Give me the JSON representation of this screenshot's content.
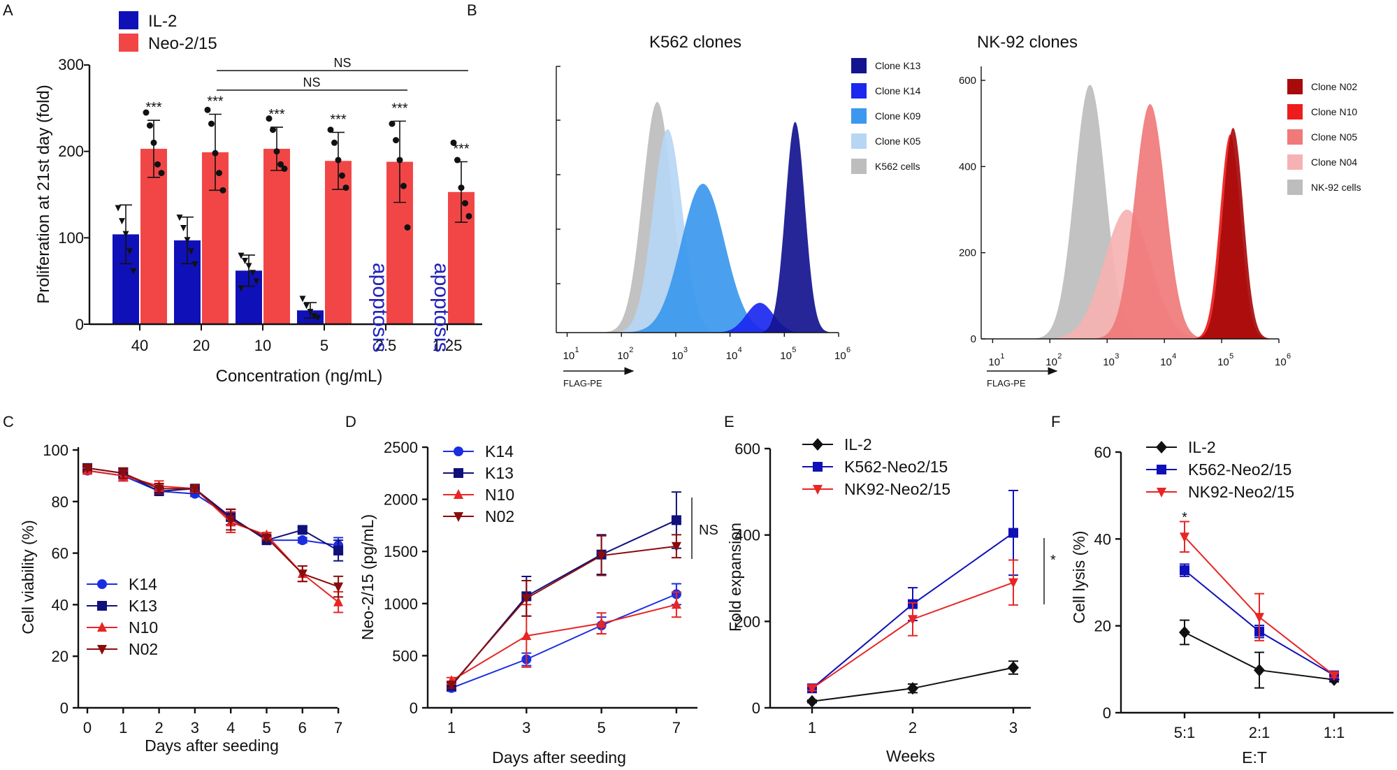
{
  "colors": {
    "il2": "#1010b8",
    "neo": "#f24646",
    "k14": "#1a2ee0",
    "k13": "#10107a",
    "n10": "#e82525",
    "n02": "#8a0c0c",
    "black": "#111111",
    "k13_fill": "#141490",
    "k14_fill": "#1a28f0",
    "k09_fill": "#3b98ee",
    "k05_fill": "#b6d6f4",
    "k562_fill": "#bdbdbd",
    "n02_fill": "#a80b0b",
    "n10_fill": "#ee1c1c",
    "n05_fill": "#f07a7a",
    "n04_fill": "#f6b2b2",
    "nk92_fill": "#bdbdbd"
  },
  "chart_data": [
    {
      "panel": "A",
      "type": "bar",
      "categories": [
        "40",
        "20",
        "10",
        "5",
        "2.5",
        "1.25"
      ],
      "series": [
        {
          "name": "IL-2",
          "values": [
            104,
            97,
            62,
            16,
            null,
            null
          ],
          "errors": [
            34,
            27,
            18,
            9,
            null,
            null
          ],
          "points": [
            [
              135,
              120,
              105,
              85,
              62
            ],
            [
              124,
              112,
              98,
              85,
              70
            ],
            [
              80,
              74,
              68,
              60,
              50,
              42
            ],
            [
              30,
              22,
              15,
              10,
              8
            ]
          ]
        },
        {
          "name": "Neo-2/15",
          "values": [
            203,
            199,
            203,
            189,
            188,
            153
          ],
          "errors": [
            33,
            44,
            25,
            33,
            47,
            35
          ],
          "points": [
            [
              245,
              230,
              210,
              185,
              175
            ],
            [
              248,
              232,
              198,
              175,
              155
            ],
            [
              238,
              225,
              200,
              185,
              180
            ],
            [
              225,
              210,
              190,
              172,
              158
            ],
            [
              232,
              213,
              190,
              160,
              112
            ],
            [
              210,
              190,
              158,
              140,
              125
            ]
          ]
        }
      ],
      "significance": [
        "***",
        "***",
        "***",
        "***",
        "***",
        "***"
      ],
      "annotations": [
        "apoptosis",
        "apoptosis"
      ],
      "brackets": [
        "NS",
        "NS"
      ],
      "xlabel": "Concentration (ng/mL)",
      "ylabel": "Proliferation at 21st day (fold)",
      "yticks": [
        "0",
        "100",
        "200",
        "300"
      ],
      "ylim": [
        0,
        300
      ]
    },
    {
      "panel": "B1",
      "type": "area",
      "title": "K562 clones",
      "xlabel": "FLAG-PE",
      "x_scale": "log10",
      "xticks": [
        "1",
        "2",
        "3",
        "4",
        "5",
        "6"
      ],
      "legend": [
        "Clone K13",
        "Clone K14",
        "Clone K09",
        "Clone K05",
        "K562 cells"
      ],
      "peaks": [
        {
          "name": "K562 cells",
          "center_log": 2.66,
          "height": 0.93
        },
        {
          "name": "Clone K05",
          "center_log": 2.85,
          "height": 0.82
        },
        {
          "name": "Clone K09",
          "center_log": 3.5,
          "height": 0.6
        },
        {
          "name": "Clone K14",
          "center_log": 4.55,
          "height": 0.12
        },
        {
          "name": "Clone K13",
          "center_log": 5.2,
          "height": 0.85
        }
      ]
    },
    {
      "panel": "B2",
      "type": "area",
      "title": "NK-92 clones",
      "xlabel": "FLAG-PE",
      "x_scale": "log10",
      "xticks": [
        "1",
        "2",
        "3",
        "4",
        "5",
        "6"
      ],
      "yticks": [
        "0",
        "200",
        "400",
        "600"
      ],
      "legend": [
        "Clone N02",
        "Clone N10",
        "Clone N05",
        "Clone N04",
        "NK-92 cells"
      ],
      "peaks": [
        {
          "name": "NK-92 cells",
          "center_log": 2.7,
          "height": 590
        },
        {
          "name": "Clone N04",
          "center_log": 3.35,
          "height": 300
        },
        {
          "name": "Clone N05",
          "center_log": 3.75,
          "height": 545
        },
        {
          "name": "Clone N10",
          "center_log": 5.15,
          "height": 475
        },
        {
          "name": "Clone N02",
          "center_log": 5.2,
          "height": 490
        }
      ]
    },
    {
      "panel": "C",
      "type": "line",
      "x": [
        0,
        1,
        2,
        3,
        4,
        5,
        6,
        7
      ],
      "series": [
        {
          "name": "K14",
          "values": [
            92,
            90,
            84,
            83,
            74,
            65,
            65,
            63
          ],
          "errors": [
            1,
            2,
            1,
            1,
            3,
            1,
            1,
            3
          ]
        },
        {
          "name": "K13",
          "values": [
            93,
            91,
            84,
            85,
            74,
            65,
            69,
            61
          ],
          "errors": [
            1,
            2,
            1,
            1,
            3,
            1,
            1,
            4
          ]
        },
        {
          "name": "N10",
          "values": [
            92,
            90,
            86,
            85,
            72,
            67,
            52,
            41
          ],
          "errors": [
            1,
            2,
            2,
            1,
            4,
            1,
            3,
            4
          ]
        },
        {
          "name": "N02",
          "values": [
            93,
            91,
            85,
            85,
            73,
            66,
            52,
            47
          ],
          "errors": [
            1,
            2,
            2,
            1,
            4,
            1,
            3,
            4
          ]
        }
      ],
      "xlabel": "Days after seeding",
      "ylabel": "Cell viability (%)",
      "xticks": [
        "0",
        "1",
        "2",
        "3",
        "4",
        "5",
        "6",
        "7"
      ],
      "yticks": [
        "0",
        "20",
        "40",
        "60",
        "80",
        "100"
      ],
      "ylim": [
        0,
        100
      ]
    },
    {
      "panel": "D",
      "type": "line",
      "x": [
        1,
        3,
        5,
        7
      ],
      "series": [
        {
          "name": "K14",
          "values": [
            190,
            465,
            790,
            1090
          ],
          "errors": [
            30,
            60,
            80,
            100
          ]
        },
        {
          "name": "K13",
          "values": [
            210,
            1070,
            1470,
            1800
          ],
          "errors": [
            30,
            190,
            190,
            270
          ]
        },
        {
          "name": "N10",
          "values": [
            260,
            690,
            810,
            990
          ],
          "errors": [
            30,
            300,
            100,
            120
          ]
        },
        {
          "name": "N02",
          "values": [
            220,
            1050,
            1460,
            1550
          ],
          "errors": [
            30,
            170,
            190,
            110
          ]
        }
      ],
      "brackets": [
        "NS"
      ],
      "xlabel": "Days after seeding",
      "ylabel": "Neo-2/15 (pg/mL)",
      "xticks": [
        "1",
        "3",
        "5",
        "7"
      ],
      "yticks": [
        "0",
        "500",
        "1000",
        "1500",
        "2000",
        "2500"
      ],
      "ylim": [
        0,
        2500
      ]
    },
    {
      "panel": "E",
      "type": "line",
      "x": [
        1,
        2,
        3
      ],
      "series": [
        {
          "name": "IL-2",
          "values": [
            15,
            45,
            93
          ],
          "errors": [
            3,
            10,
            15
          ]
        },
        {
          "name": "K562-Neo2/15",
          "values": [
            45,
            240,
            405
          ],
          "errors": [
            5,
            38,
            98
          ]
        },
        {
          "name": "NK92-Neo2/15",
          "values": [
            45,
            205,
            290
          ],
          "errors": [
            5,
            38,
            52
          ]
        }
      ],
      "significance": [
        "*"
      ],
      "xlabel": "Weeks",
      "ylabel": "Fold expansion",
      "xticks": [
        "1",
        "2",
        "3"
      ],
      "yticks": [
        "0",
        "200",
        "400",
        "600"
      ],
      "ylim": [
        0,
        600
      ]
    },
    {
      "panel": "F",
      "type": "line",
      "categories": [
        "5:1",
        "2:1",
        "1:1"
      ],
      "series": [
        {
          "name": "IL-2",
          "values": [
            18.5,
            9.8,
            7.6
          ],
          "errors": [
            2.8,
            4.1,
            0.5
          ]
        },
        {
          "name": "K562-Neo2/15",
          "values": [
            32.8,
            18.7,
            8.6
          ],
          "errors": [
            1.4,
            1.4,
            0.5
          ]
        },
        {
          "name": "NK92-Neo2/15",
          "values": [
            40.5,
            22,
            8.6
          ],
          "errors": [
            3.5,
            5.4,
            0.5
          ]
        }
      ],
      "significance": [
        "*"
      ],
      "xlabel": "E:T",
      "ylabel": "Cell lysis (%)",
      "yticks": [
        "0",
        "20",
        "40",
        "60"
      ],
      "ylim": [
        0,
        60
      ]
    }
  ],
  "panel_labels": [
    "A",
    "B",
    "C",
    "D",
    "E",
    "F"
  ]
}
